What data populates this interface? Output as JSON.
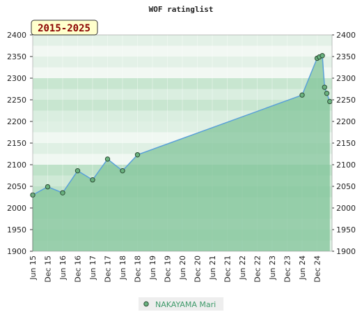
{
  "chart_data": {
    "type": "area",
    "title": "WOF ratinglist",
    "range_label": "2015-2025",
    "ylim": [
      1900,
      2400
    ],
    "y_ticks": [
      1900,
      1950,
      2000,
      2050,
      2100,
      2150,
      2200,
      2250,
      2300,
      2350,
      2400
    ],
    "x_ticks": [
      "Jun 15",
      "Dec 15",
      "Jun 16",
      "Dec 16",
      "Jun 17",
      "Dec 17",
      "Jun 18",
      "Dec 18",
      "Jun 19",
      "Dec 19",
      "Jun 20",
      "Dec 20",
      "Jun 21",
      "Dec 21",
      "Jun 22",
      "Dec 22",
      "Jun 23",
      "Dec 23",
      "Jun 24",
      "Dec 24"
    ],
    "legend_position": "bottom-center",
    "series": [
      {
        "name": "NAKAYAMA Mari",
        "color": "#5aa0d8",
        "points": [
          {
            "x": 0,
            "y": 2030
          },
          {
            "x": 1,
            "y": 2049
          },
          {
            "x": 2,
            "y": 2035
          },
          {
            "x": 3,
            "y": 2086
          },
          {
            "x": 4,
            "y": 2065
          },
          {
            "x": 5,
            "y": 2113
          },
          {
            "x": 6,
            "y": 2086
          },
          {
            "x": 7,
            "y": 2123
          },
          {
            "x": 18,
            "y": 2261
          },
          {
            "x": 19,
            "y": 2346
          },
          {
            "x": 19.15,
            "y": 2349
          },
          {
            "x": 19.35,
            "y": 2352
          },
          {
            "x": 19.5,
            "y": 2279
          },
          {
            "x": 19.65,
            "y": 2265
          },
          {
            "x": 19.85,
            "y": 2246
          }
        ]
      }
    ]
  }
}
